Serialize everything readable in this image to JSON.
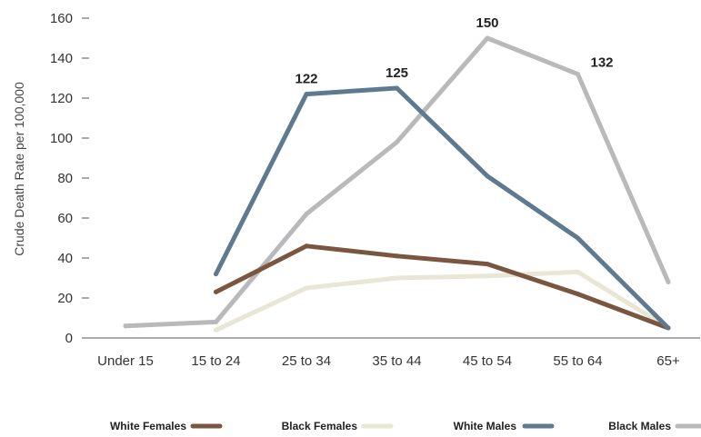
{
  "chart_data": {
    "type": "line",
    "ylabel": "Crude Death Rate per 100,000",
    "xlabel": "",
    "ylim": [
      0,
      160
    ],
    "yticks": [
      0,
      20,
      40,
      60,
      80,
      100,
      120,
      140,
      160
    ],
    "categories": [
      "Under 15",
      "15 to 24",
      "25 to 34",
      "35 to 44",
      "45 to 54",
      "55 to 64",
      "65+"
    ],
    "grid": false,
    "legend_position": "bottom",
    "series": [
      {
        "name": "White Females",
        "color": "#7a5641",
        "values": [
          null,
          23,
          46,
          41,
          37,
          22,
          5
        ]
      },
      {
        "name": "Black Females",
        "color": "#e8e6d4",
        "values": [
          null,
          4,
          25,
          30,
          31,
          33,
          5
        ]
      },
      {
        "name": "White Males",
        "color": "#5e7a90",
        "values": [
          null,
          32,
          122,
          125,
          81,
          50,
          5
        ]
      },
      {
        "name": "Black Males",
        "color": "#b9b9bb",
        "values": [
          6,
          8,
          62,
          98,
          150,
          132,
          28
        ]
      }
    ],
    "annotations": [
      {
        "series": "White Males",
        "category": "25 to 34",
        "text": "122"
      },
      {
        "series": "White Males",
        "category": "35 to 44",
        "text": "125"
      },
      {
        "series": "Black Males",
        "category": "45 to 54",
        "text": "150"
      },
      {
        "series": "Black Males",
        "category": "55 to 64",
        "text": "132"
      }
    ]
  }
}
